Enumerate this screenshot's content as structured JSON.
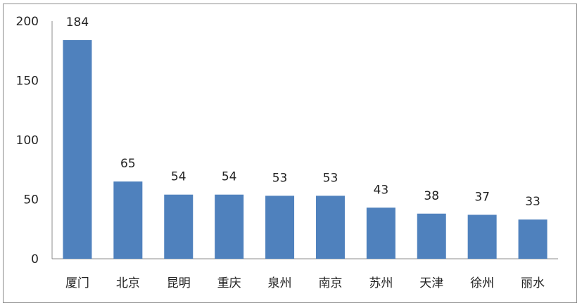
{
  "chart_data": {
    "type": "bar",
    "categories": [
      "厦门",
      "北京",
      "昆明",
      "重庆",
      "泉州",
      "南京",
      "苏州",
      "天津",
      "徐州",
      "丽水"
    ],
    "values": [
      184,
      65,
      54,
      54,
      53,
      53,
      43,
      38,
      37,
      33
    ],
    "title": "",
    "xlabel": "",
    "ylabel": "",
    "ylim": [
      0,
      200
    ],
    "yticks": [
      0,
      50,
      100,
      150,
      200
    ],
    "grid": false,
    "legend": "none",
    "data_labels": true,
    "bar_color": "#4f81bd"
  }
}
